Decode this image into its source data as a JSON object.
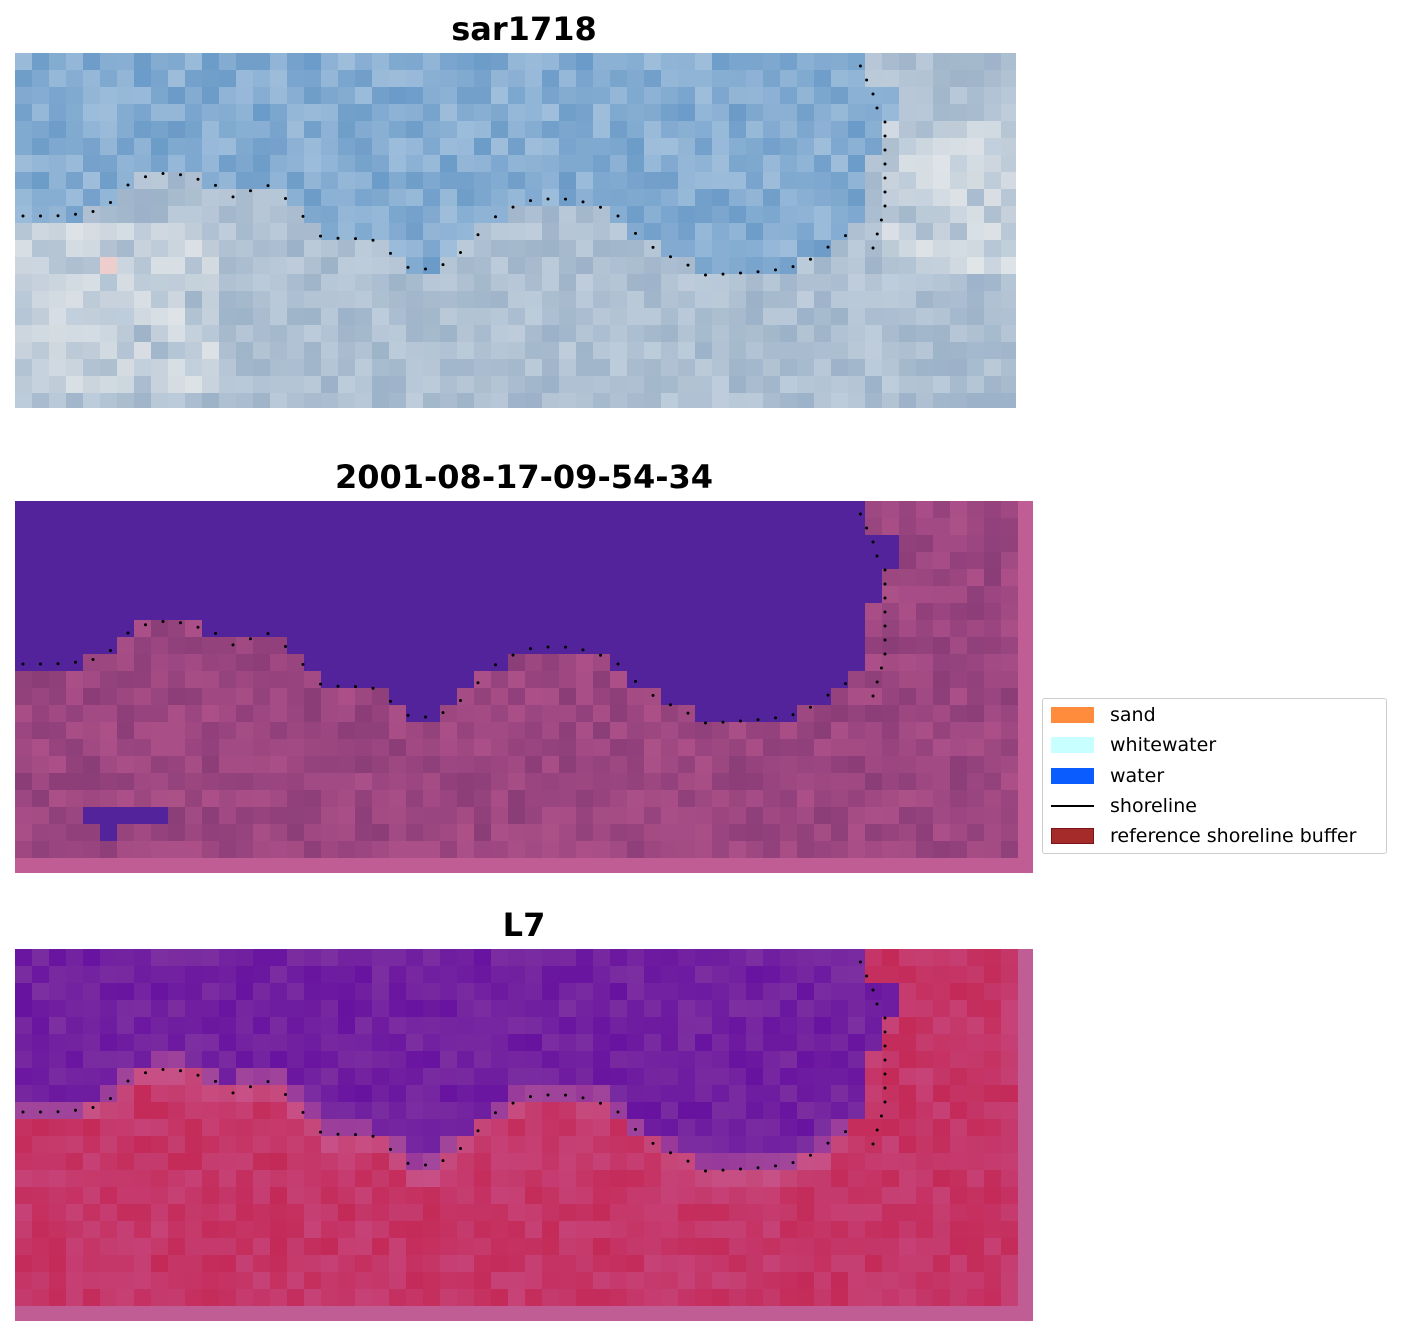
{
  "panels": [
    {
      "title": "sar1718",
      "kind": "rgb"
    },
    {
      "title": "2001-08-17-09-54-34",
      "kind": "classification"
    },
    {
      "title": "L7",
      "kind": "mndwi"
    }
  ],
  "legend": {
    "items": [
      {
        "label": "sand",
        "color": "#ff8c3c",
        "type": "patch"
      },
      {
        "label": "whitewater",
        "color": "#c8ffff",
        "type": "patch"
      },
      {
        "label": "water",
        "color": "#0a5cff",
        "type": "patch"
      },
      {
        "label": "shoreline",
        "color": "#000000",
        "type": "line"
      },
      {
        "label": "reference shoreline buffer",
        "color": "#a52a2a",
        "type": "patch"
      }
    ]
  },
  "colors": {
    "rgb_water": "#6b9bc8",
    "rgb_land": "#9cb2c8",
    "class_water": "#52239a",
    "class_land": "#8b3d78",
    "class_border": "#c05d95",
    "mndwi_water": "#7c2fa0",
    "mndwi_land": "#c42a58",
    "shoreline_dots": "#000000"
  }
}
